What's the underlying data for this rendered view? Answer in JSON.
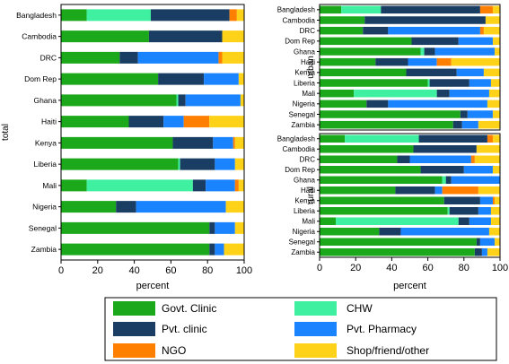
{
  "colors": {
    "govt_clinic": "#1ba81b",
    "chw": "#3ff0a0",
    "pvt_clinic": "#1a3d63",
    "pvt_pharmacy": "#1a83ff",
    "ngo": "#ff8000",
    "shop_friend_other": "#ffd21a"
  },
  "legend": {
    "items": [
      {
        "key": "govt_clinic",
        "label": "Govt. Clinic"
      },
      {
        "key": "chw",
        "label": "CHW"
      },
      {
        "key": "pvt_clinic",
        "label": "Pvt. clinic"
      },
      {
        "key": "pvt_pharmacy",
        "label": "Pvt. Pharmacy"
      },
      {
        "key": "ngo",
        "label": "NGO"
      },
      {
        "key": "shop_friend_other",
        "label": "Shop/friend/other"
      }
    ]
  },
  "chart_data": [
    {
      "type": "bar",
      "orientation": "horizontal",
      "stacked": true,
      "panel": "total",
      "ylabel": "total",
      "xlabel": "percent",
      "xlim": [
        0,
        100
      ],
      "xticks": [
        0,
        20,
        40,
        60,
        80,
        100
      ],
      "categories": [
        "Bangladesh",
        "Cambodia",
        "DRC",
        "Dom Rep",
        "Ghana",
        "Haiti",
        "Kenya",
        "Liberia",
        "Mali",
        "Nigeria",
        "Senegal",
        "Zambia"
      ],
      "series": [
        {
          "name": "Govt. Clinic",
          "key": "govt_clinic",
          "values": [
            14,
            48,
            32,
            53,
            63,
            37,
            61,
            64,
            14,
            30,
            81,
            81
          ]
        },
        {
          "name": "CHW",
          "key": "chw",
          "values": [
            35,
            0,
            0,
            0,
            1,
            0,
            0,
            1,
            58,
            0,
            0,
            0
          ]
        },
        {
          "name": "Pvt. clinic",
          "key": "pvt_clinic",
          "values": [
            43,
            40,
            10,
            25,
            4,
            19,
            22,
            19,
            7,
            11,
            3,
            3
          ]
        },
        {
          "name": "Pvt. Pharmacy",
          "key": "pvt_pharmacy",
          "values": [
            0,
            0,
            44,
            19,
            30,
            11,
            11,
            11,
            16,
            49,
            11,
            5
          ]
        },
        {
          "name": "NGO",
          "key": "ngo",
          "values": [
            4,
            0,
            2,
            0,
            0,
            14,
            1,
            0,
            2,
            0,
            0,
            0
          ]
        },
        {
          "name": "Shop/friend/other",
          "key": "shop_friend_other",
          "values": [
            4,
            12,
            12,
            3,
            2,
            19,
            5,
            5,
            3,
            10,
            5,
            11
          ]
        }
      ]
    },
    {
      "type": "bar",
      "orientation": "horizontal",
      "stacked": true,
      "panel": "urban",
      "ylabel": "urban",
      "xlim": [
        0,
        100
      ],
      "categories": [
        "Bangladesh",
        "Cambodia",
        "DRC",
        "Dom Rep",
        "Ghana",
        "Haiti",
        "Kenya",
        "Liberia",
        "Mali",
        "Nigeria",
        "Senegal",
        "Zambia"
      ],
      "series": [
        {
          "name": "Govt. Clinic",
          "key": "govt_clinic",
          "values": [
            12,
            25,
            24,
            51,
            56,
            31,
            48,
            60,
            19,
            26,
            78,
            74
          ]
        },
        {
          "name": "CHW",
          "key": "chw",
          "values": [
            22,
            0,
            0,
            0,
            2,
            0,
            0,
            1,
            46,
            0,
            0,
            0
          ]
        },
        {
          "name": "Pvt. clinic",
          "key": "pvt_clinic",
          "values": [
            55,
            67,
            14,
            26,
            6,
            18,
            28,
            22,
            7,
            12,
            4,
            5
          ]
        },
        {
          "name": "Pvt. Pharmacy",
          "key": "pvt_pharmacy",
          "values": [
            0,
            0,
            51,
            19,
            33,
            16,
            15,
            12,
            22,
            55,
            14,
            9
          ]
        },
        {
          "name": "NGO",
          "key": "ngo",
          "values": [
            7,
            0,
            2,
            0,
            0,
            8,
            0,
            0,
            0,
            0,
            0,
            0
          ]
        },
        {
          "name": "Shop/friend/other",
          "key": "shop_friend_other",
          "values": [
            4,
            8,
            9,
            4,
            3,
            27,
            9,
            5,
            6,
            7,
            4,
            12
          ]
        }
      ]
    },
    {
      "type": "bar",
      "orientation": "horizontal",
      "stacked": true,
      "panel": "rural",
      "ylabel": "rural",
      "xlabel": "percent",
      "xlim": [
        0,
        100
      ],
      "xticks": [
        0,
        20,
        40,
        60,
        80,
        100
      ],
      "categories": [
        "Bangladesh",
        "Cambodia",
        "DRC",
        "Dom Rep",
        "Ghana",
        "Haiti",
        "Kenya",
        "Liberia",
        "Mali",
        "Nigeria",
        "Senegal",
        "Zambia"
      ],
      "series": [
        {
          "name": "Govt. Clinic",
          "key": "govt_clinic",
          "values": [
            14,
            52,
            43,
            56,
            68,
            42,
            69,
            71,
            9,
            33,
            87,
            86
          ]
        },
        {
          "name": "CHW",
          "key": "chw",
          "values": [
            41,
            0,
            0,
            0,
            2,
            0,
            0,
            1,
            68,
            0,
            0,
            0
          ]
        },
        {
          "name": "Pvt. clinic",
          "key": "pvt_clinic",
          "values": [
            38,
            35,
            7,
            24,
            3,
            22,
            20,
            16,
            6,
            12,
            2,
            4
          ]
        },
        {
          "name": "Pvt. Pharmacy",
          "key": "pvt_pharmacy",
          "values": [
            0,
            0,
            34,
            16,
            27,
            4,
            7,
            7,
            12,
            49,
            8,
            3
          ]
        },
        {
          "name": "NGO",
          "key": "ngo",
          "values": [
            3,
            0,
            2,
            0,
            0,
            20,
            1,
            0,
            0,
            0,
            0,
            0
          ]
        },
        {
          "name": "Shop/friend/other",
          "key": "shop_friend_other",
          "values": [
            4,
            13,
            14,
            4,
            0,
            12,
            3,
            5,
            5,
            6,
            3,
            7
          ]
        }
      ]
    }
  ]
}
